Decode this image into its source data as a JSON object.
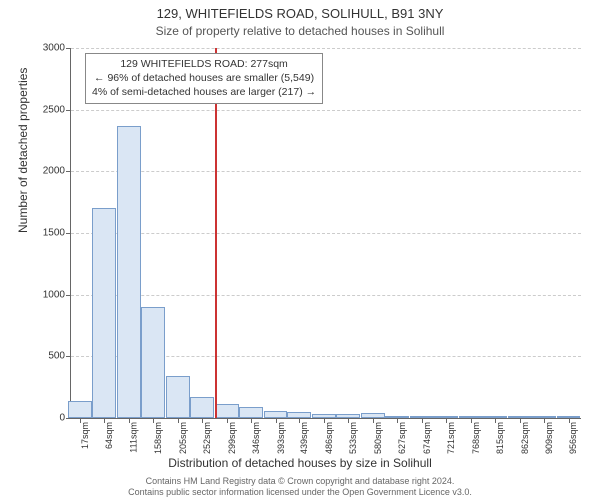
{
  "chart": {
    "type": "histogram",
    "title_line1": "129, WHITEFIELDS ROAD, SOLIHULL, B91 3NY",
    "title_line2": "Size of property relative to detached houses in Solihull",
    "y_label": "Number of detached properties",
    "x_label": "Distribution of detached houses by size in Solihull",
    "y_max": 3000,
    "y_tick_step": 500,
    "y_ticks": [
      0,
      500,
      1000,
      1500,
      2000,
      2500,
      3000
    ],
    "x_min": 0,
    "x_max": 980,
    "x_tick_labels": [
      "17sqm",
      "64sqm",
      "111sqm",
      "158sqm",
      "205sqm",
      "252sqm",
      "299sqm",
      "346sqm",
      "393sqm",
      "439sqm",
      "486sqm",
      "533sqm",
      "580sqm",
      "627sqm",
      "674sqm",
      "721sqm",
      "768sqm",
      "815sqm",
      "862sqm",
      "909sqm",
      "956sqm"
    ],
    "x_tick_positions": [
      17,
      64,
      111,
      158,
      205,
      252,
      299,
      346,
      393,
      439,
      486,
      533,
      580,
      627,
      674,
      721,
      768,
      815,
      862,
      909,
      956
    ],
    "bar_width_sqm": 46,
    "bars": [
      {
        "x": 17,
        "y": 140
      },
      {
        "x": 64,
        "y": 1700
      },
      {
        "x": 111,
        "y": 2370
      },
      {
        "x": 158,
        "y": 900
      },
      {
        "x": 205,
        "y": 340
      },
      {
        "x": 252,
        "y": 170
      },
      {
        "x": 299,
        "y": 110
      },
      {
        "x": 346,
        "y": 90
      },
      {
        "x": 393,
        "y": 60
      },
      {
        "x": 439,
        "y": 50
      },
      {
        "x": 486,
        "y": 35
      },
      {
        "x": 533,
        "y": 35
      },
      {
        "x": 580,
        "y": 40
      },
      {
        "x": 627,
        "y": 6
      },
      {
        "x": 674,
        "y": 6
      },
      {
        "x": 721,
        "y": 6
      },
      {
        "x": 768,
        "y": 3
      },
      {
        "x": 815,
        "y": 3
      },
      {
        "x": 862,
        "y": 3
      },
      {
        "x": 909,
        "y": 3
      },
      {
        "x": 956,
        "y": 3
      }
    ],
    "bar_fill": "#dae6f4",
    "bar_stroke": "#7a9ecb",
    "grid_color": "#cccccc",
    "axis_color": "#666666",
    "marker": {
      "x_value": 277,
      "color": "#cc3333"
    },
    "annotation": {
      "line1": "129 WHITEFIELDS ROAD: 277sqm",
      "line2": "← 96% of detached houses are smaller (5,549)",
      "line3": "4% of semi-detached houses are larger (217) →"
    },
    "footer_line1": "Contains HM Land Registry data © Crown copyright and database right 2024.",
    "footer_line2": "Contains public sector information licensed under the Open Government Licence v3.0."
  }
}
